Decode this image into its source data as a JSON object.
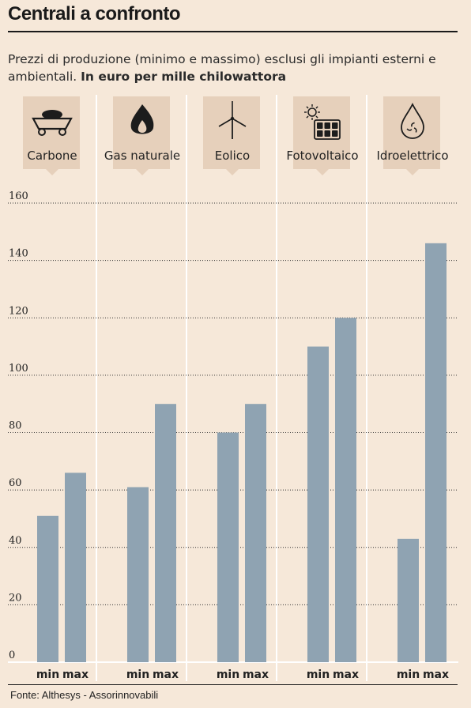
{
  "header": {
    "title": "Centrali a confronto",
    "subtitle": "Prezzi di produzione (minimo e massimo) esclusi gli impianti esterni e ambientali.",
    "unit": "In euro per mille chilowattora"
  },
  "footer": {
    "source": "Fonte: Althesys - Assorinnovabili"
  },
  "colors": {
    "bar": "#8fa3b2",
    "panel": "#e6d0bb",
    "background": "#f6e8d9",
    "text": "#222222",
    "grid": "#333333"
  },
  "chart_data": {
    "type": "bar",
    "title": "Centrali a confronto",
    "ylabel": "In euro per mille chilowattora",
    "ylim": [
      0,
      160
    ],
    "yticks": [
      "0",
      "20",
      "40",
      "60",
      "80",
      "100",
      "120",
      "140",
      "160"
    ],
    "grid": true,
    "categories": [
      {
        "label": "Carbone",
        "icon": "coal-cart-icon",
        "min": 51,
        "max": 66
      },
      {
        "label": "Gas naturale",
        "icon": "gas-flame-icon",
        "min": 61,
        "max": 90
      },
      {
        "label": "Eolico",
        "icon": "wind-turbine-icon",
        "min": 80,
        "max": 90
      },
      {
        "label": "Fotovoltaico",
        "icon": "solar-panel-icon",
        "min": 110,
        "max": 120
      },
      {
        "label": "Idroelettrico",
        "icon": "water-drop-icon",
        "min": 43,
        "max": 146
      }
    ],
    "bar_labels": [
      "min",
      "max"
    ]
  }
}
